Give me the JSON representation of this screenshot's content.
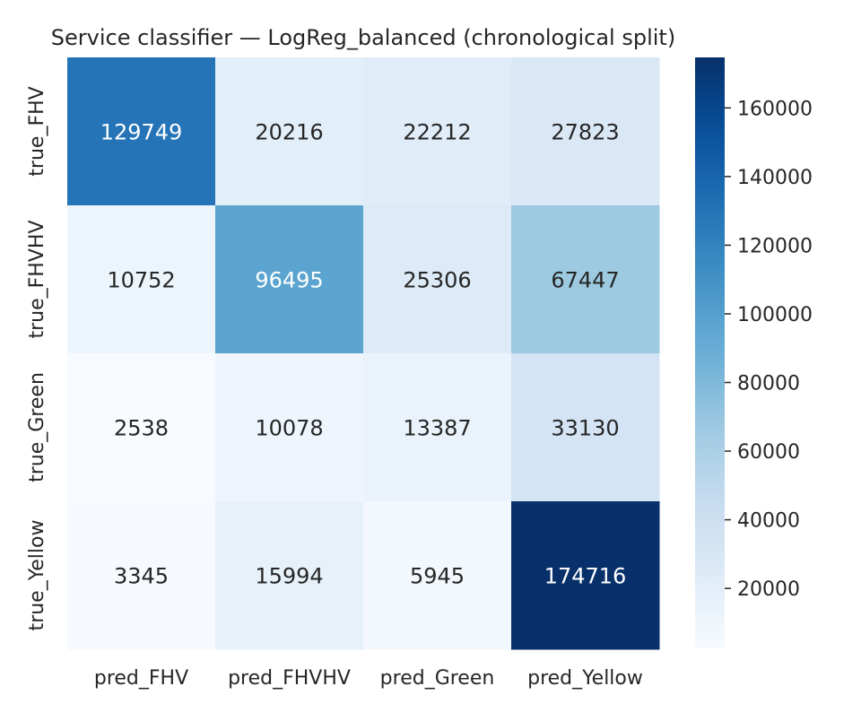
{
  "chart_data": {
    "type": "heatmap",
    "title": "Service classifier — LogReg_balanced (chronological split)",
    "xlabel": "",
    "ylabel": "",
    "x_categories": [
      "pred_FHV",
      "pred_FHVHV",
      "pred_Green",
      "pred_Yellow"
    ],
    "y_categories": [
      "true_FHV",
      "true_FHVHV",
      "true_Green",
      "true_Yellow"
    ],
    "values": [
      [
        129749,
        20216,
        22212,
        27823
      ],
      [
        10752,
        96495,
        25306,
        67447
      ],
      [
        2538,
        10078,
        13387,
        33130
      ],
      [
        3345,
        15994,
        5945,
        174716
      ]
    ],
    "colorscale": "Blues",
    "color_range": [
      2538,
      174716
    ],
    "colorbar_ticks": [
      20000,
      40000,
      60000,
      80000,
      100000,
      120000,
      140000,
      160000
    ],
    "grid": false,
    "legend": "colorbar-right"
  }
}
